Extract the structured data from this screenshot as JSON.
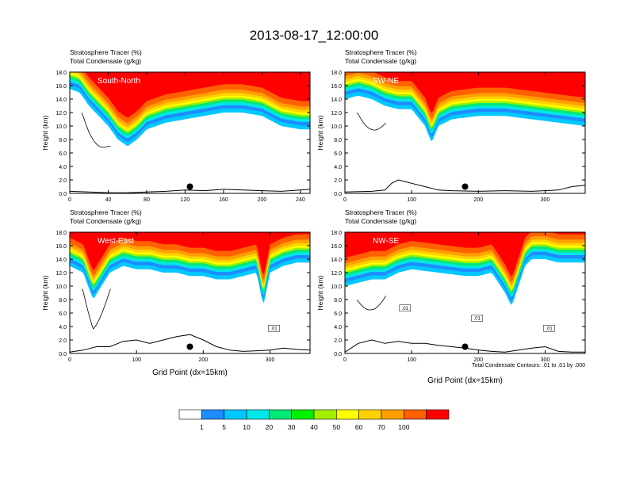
{
  "figure": {
    "title": "2013-08-17_12:00:00",
    "footnote": "Total Condensate Contours: .01 to .01 by .000"
  },
  "colorbar": {
    "labels": [
      "1",
      "5",
      "10",
      "20",
      "30",
      "40",
      "50",
      "60",
      "70",
      "100"
    ],
    "colors": [
      "#ffffff",
      "#1e8cff",
      "#00c8ff",
      "#00e8e8",
      "#00e878",
      "#00f000",
      "#a0f000",
      "#ffff00",
      "#ffd200",
      "#ffa000",
      "#ff6000",
      "#ff0000"
    ]
  },
  "chart_data": [
    {
      "type": "heatmap",
      "panel": "South-North",
      "label": "South-North",
      "title_lines": [
        "Stratosphere Tracer   (%)",
        "Total Condensate   (g/kg)"
      ],
      "xlabel": "",
      "ylabel": "Height (km)",
      "xlim": [
        0,
        250
      ],
      "ylim": [
        0,
        18
      ],
      "xticks": [
        0,
        40,
        80,
        120,
        160,
        200,
        240
      ],
      "yticks": [
        "0.0",
        "2.0",
        "4.0",
        "6.0",
        "8.0",
        "10.0",
        "12.0",
        "14.0",
        "16.0",
        "18.0"
      ],
      "tracer_boundary_km": {
        "x": [
          0,
          10,
          20,
          30,
          40,
          50,
          60,
          70,
          80,
          100,
          120,
          140,
          160,
          180,
          200,
          220,
          240,
          250
        ],
        "y": [
          15.5,
          15,
          13,
          11.5,
          10,
          8,
          7,
          8,
          9.5,
          10.5,
          11,
          11.5,
          12,
          12,
          11.5,
          10,
          9.5,
          9.5
        ]
      },
      "terrain_km": {
        "x": [
          0,
          20,
          40,
          60,
          80,
          100,
          120,
          140,
          160,
          180,
          200,
          220,
          240,
          250
        ],
        "y": [
          0.3,
          0.2,
          0.1,
          0.1,
          0.2,
          0.3,
          0.5,
          0.4,
          0.6,
          0.5,
          0.4,
          0.3,
          0.5,
          0.6
        ]
      },
      "marker": {
        "x": 125,
        "y": 1.0
      }
    },
    {
      "type": "heatmap",
      "panel": "SW-NE",
      "label": "SW-NE",
      "title_lines": [
        "Stratosphere Tracer   (%)",
        "Total Condensate   (g/kg)"
      ],
      "xlabel": "",
      "ylabel": "Height (km)",
      "xlim": [
        0,
        360
      ],
      "ylim": [
        0,
        18
      ],
      "xticks": [
        0,
        100,
        200,
        300
      ],
      "yticks": [
        "0.0",
        "2.0",
        "4.0",
        "6.0",
        "8.0",
        "10.0",
        "12.0",
        "14.0",
        "16.0",
        "18.0"
      ],
      "tracer_boundary_km": {
        "x": [
          0,
          20,
          40,
          60,
          80,
          100,
          120,
          130,
          140,
          160,
          200,
          240,
          280,
          320,
          360
        ],
        "y": [
          14,
          14.5,
          14,
          13,
          12.5,
          12.5,
          10,
          7.5,
          10,
          11,
          11.5,
          11.5,
          11,
          10.5,
          10
        ]
      },
      "terrain_km": {
        "x": [
          0,
          40,
          60,
          70,
          80,
          100,
          120,
          140,
          160,
          200,
          240,
          280,
          320,
          340,
          360
        ],
        "y": [
          0.2,
          0.3,
          0.5,
          1.5,
          2.0,
          1.5,
          1.0,
          0.5,
          0.4,
          0.3,
          0.4,
          0.3,
          0.5,
          1.0,
          1.2
        ]
      },
      "marker": {
        "x": 180,
        "y": 1.0
      }
    },
    {
      "type": "heatmap",
      "panel": "West-East",
      "label": "West-East",
      "title_lines": [
        "Stratosphere Tracer   (%)",
        "Total Condensate   (g/kg)"
      ],
      "xlabel": "Grid Point (dx=15km)",
      "ylabel": "Height (km)",
      "xlim": [
        0,
        360
      ],
      "ylim": [
        0,
        18
      ],
      "xticks": [
        0,
        100,
        200,
        300
      ],
      "yticks": [
        "0.0",
        "2.0",
        "4.0",
        "6.0",
        "8.0",
        "10.0",
        "12.0",
        "14.0",
        "16.0",
        "18.0"
      ],
      "tracer_boundary_km": {
        "x": [
          0,
          20,
          35,
          60,
          80,
          100,
          120,
          140,
          160,
          180,
          200,
          220,
          240,
          260,
          280,
          290,
          300,
          320,
          340,
          360
        ],
        "y": [
          13,
          12,
          8,
          12,
          13,
          12.5,
          12.5,
          12,
          12,
          11.5,
          11.5,
          11,
          11,
          11.5,
          12,
          7,
          12,
          13,
          13.5,
          13.5
        ]
      },
      "terrain_km": {
        "x": [
          0,
          20,
          40,
          60,
          80,
          100,
          120,
          140,
          160,
          180,
          200,
          220,
          240,
          260,
          280,
          300,
          320,
          340,
          360
        ],
        "y": [
          0.2,
          0.5,
          1.0,
          1.0,
          1.8,
          2.0,
          1.5,
          2.0,
          2.5,
          2.8,
          2.0,
          1.0,
          0.5,
          0.3,
          0.4,
          0.5,
          0.8,
          0.6,
          0.5
        ]
      },
      "contour_labels": [
        ".01"
      ],
      "marker": {
        "x": 180,
        "y": 1.0
      }
    },
    {
      "type": "heatmap",
      "panel": "NW-SE",
      "label": "NW-SE",
      "title_lines": [
        "Stratosphere Tracer   (%)",
        "Total Condensate   (g/kg)"
      ],
      "xlabel": "Grid Point (dx=15km)",
      "ylabel": "Height (km)",
      "xlim": [
        0,
        360
      ],
      "ylim": [
        0,
        18
      ],
      "xticks": [
        0,
        100,
        200,
        300
      ],
      "yticks": [
        "0.0",
        "2.0",
        "4.0",
        "6.0",
        "8.0",
        "10.0",
        "12.0",
        "14.0",
        "16.0",
        "18.0"
      ],
      "tracer_boundary_km": {
        "x": [
          0,
          20,
          40,
          60,
          80,
          100,
          140,
          180,
          200,
          220,
          240,
          250,
          260,
          270,
          280,
          300,
          320,
          340,
          360
        ],
        "y": [
          10,
          10.5,
          11,
          11,
          12,
          12.5,
          12,
          11.5,
          11.5,
          12,
          9,
          7,
          10,
          13,
          14,
          14,
          13.5,
          13.5,
          13.5
        ]
      },
      "terrain_km": {
        "x": [
          0,
          20,
          40,
          60,
          80,
          100,
          120,
          140,
          160,
          180,
          200,
          220,
          240,
          260,
          280,
          300,
          320,
          340,
          360
        ],
        "y": [
          0.2,
          1.5,
          2.0,
          1.5,
          1.8,
          1.5,
          1.5,
          1.2,
          1.0,
          0.8,
          0.5,
          0.3,
          0.2,
          0.5,
          0.8,
          1.0,
          0.3,
          0.2,
          0.2
        ]
      },
      "contour_labels": [
        ".01",
        ".01",
        ".01"
      ],
      "marker": {
        "x": 180,
        "y": 1.0
      }
    }
  ]
}
